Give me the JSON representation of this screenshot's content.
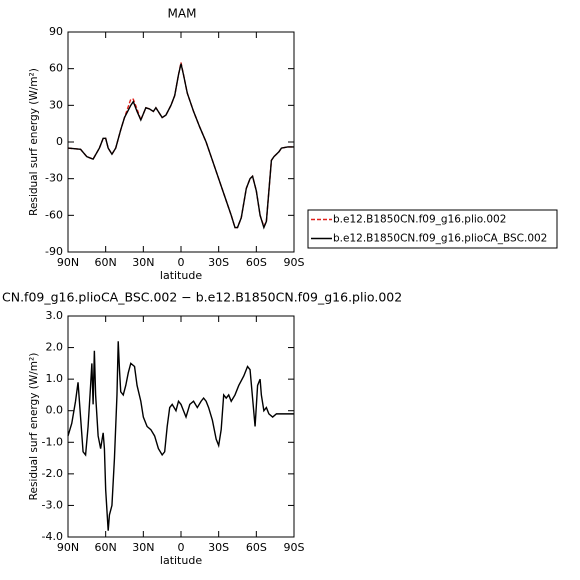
{
  "chart_data": [
    {
      "type": "line",
      "title": "MAM",
      "xlabel": "latitude",
      "ylabel": "Residual surf energy (W/m²)",
      "x": [
        90,
        80,
        75,
        70,
        65,
        62,
        60,
        58,
        55,
        52,
        48,
        45,
        40,
        38,
        35,
        32,
        28,
        25,
        22,
        20,
        15,
        12,
        8,
        5,
        2,
        0,
        -2,
        -5,
        -10,
        -15,
        -20,
        -25,
        -30,
        -35,
        -40,
        -43,
        -45,
        -48,
        -50,
        -52,
        -55,
        -57,
        -60,
        -63,
        -66,
        -68,
        -70,
        -72,
        -74,
        -76,
        -78,
        -80,
        -85,
        -90
      ],
      "series": [
        {
          "name": "b.e12.B1850CN.f09_g16.plio.002",
          "color": "#e0201b",
          "style": "dashed",
          "values": [
            -5,
            -6,
            -12,
            -14,
            -5,
            3,
            3,
            -5,
            -10,
            -5,
            10,
            20,
            35,
            35,
            27,
            18,
            28,
            27,
            25,
            28,
            20,
            22,
            30,
            38,
            55,
            65,
            55,
            40,
            25,
            12,
            0,
            -15,
            -30,
            -45,
            -60,
            -70,
            -70,
            -62,
            -50,
            -38,
            -30,
            -28,
            -40,
            -60,
            -69,
            -65,
            -40,
            -15,
            -12,
            -10,
            -8,
            -5,
            -4,
            -4
          ]
        },
        {
          "name": "b.e12.B1850CN.f09_g16.plioCA_BSC.002",
          "color": "#000000",
          "style": "solid",
          "values": [
            -5,
            -6,
            -12,
            -14,
            -5,
            3,
            3,
            -5,
            -10,
            -5,
            10,
            20,
            30,
            33,
            25,
            18,
            28,
            27,
            25,
            28,
            20,
            22,
            30,
            38,
            55,
            64,
            55,
            40,
            25,
            12,
            0,
            -15,
            -30,
            -45,
            -60,
            -70,
            -70,
            -62,
            -50,
            -38,
            -30,
            -28,
            -40,
            -60,
            -70,
            -65,
            -40,
            -15,
            -12,
            -10,
            -8,
            -5,
            -4,
            -4
          ]
        }
      ],
      "xlim": [
        90,
        -90
      ],
      "xticks": [
        {
          "value": 90,
          "label": "90N"
        },
        {
          "value": 60,
          "label": "60N"
        },
        {
          "value": 30,
          "label": "30N"
        },
        0,
        {
          "value": -30,
          "label": "30S"
        },
        {
          "value": -60,
          "label": "60S"
        },
        {
          "value": -90,
          "label": "90S"
        }
      ],
      "ylim": [
        -90,
        90
      ],
      "yticks": [
        -90,
        -60,
        -30,
        0,
        30,
        60,
        90
      ],
      "legend": "right"
    },
    {
      "type": "line",
      "title": "CN.f09_g16.plioCA_BSC.002 − b.e12.B1850CN.f09_g16.plio.002",
      "xlabel": "latitude",
      "ylabel": "Residual surf energy (W/m²)",
      "x": [
        90,
        87,
        84,
        82,
        80,
        78,
        76,
        74,
        72,
        71,
        70,
        69,
        68,
        66,
        64,
        62,
        61,
        60,
        58,
        57,
        55,
        53,
        51,
        50,
        49,
        48,
        46,
        44,
        42,
        40,
        37,
        35,
        32,
        30,
        27,
        24,
        21,
        18,
        15,
        13,
        11,
        9,
        7,
        4,
        2,
        0,
        -2,
        -4,
        -7,
        -10,
        -13,
        -16,
        -18,
        -20,
        -22,
        -25,
        -28,
        -30,
        -32,
        -34,
        -36,
        -38,
        -40,
        -43,
        -46,
        -50,
        -53,
        -55,
        -57,
        -59,
        -61,
        -63,
        -64,
        -66,
        -68,
        -70,
        -73,
        -76,
        -80,
        -85,
        -90
      ],
      "series": [
        {
          "color": "#000000",
          "style": "solid",
          "values": [
            -0.8,
            -0.4,
            0.3,
            0.9,
            -0.2,
            -1.3,
            -1.4,
            -0.5,
            0.8,
            1.5,
            0.2,
            1.9,
            0.5,
            -0.8,
            -1.2,
            -0.7,
            -1.2,
            -2.5,
            -3.8,
            -3.3,
            -3.0,
            -1.5,
            0.5,
            2.2,
            1.3,
            0.6,
            0.5,
            0.8,
            1.2,
            1.5,
            1.4,
            0.8,
            0.3,
            -0.2,
            -0.5,
            -0.6,
            -0.8,
            -1.2,
            -1.4,
            -1.3,
            -0.5,
            0.1,
            0.2,
            0.0,
            0.3,
            0.2,
            0.0,
            -0.2,
            0.2,
            0.3,
            0.1,
            0.3,
            0.4,
            0.3,
            0.1,
            -0.3,
            -0.9,
            -1.1,
            -0.6,
            0.5,
            0.4,
            0.5,
            0.3,
            0.5,
            0.8,
            1.1,
            1.4,
            1.3,
            0.4,
            -0.5,
            0.8,
            1.0,
            0.5,
            0.0,
            0.1,
            -0.1,
            -0.2,
            -0.1,
            -0.1,
            -0.1,
            -0.1
          ]
        }
      ],
      "xlim": [
        90,
        -90
      ],
      "xticks": [
        {
          "value": 90,
          "label": "90N"
        },
        {
          "value": 60,
          "label": "60N"
        },
        {
          "value": 30,
          "label": "30N"
        },
        0,
        {
          "value": -30,
          "label": "30S"
        },
        {
          "value": -60,
          "label": "60S"
        },
        {
          "value": -90,
          "label": "90S"
        }
      ],
      "ylim": [
        -4,
        3
      ],
      "yticks": [
        {
          "value": -4,
          "label": "-4.0"
        },
        {
          "value": -3,
          "label": "-3.0"
        },
        {
          "value": -2,
          "label": "-2.0"
        },
        {
          "value": -1,
          "label": "-1.0"
        },
        {
          "value": 0,
          "label": "0.0"
        },
        {
          "value": 1,
          "label": "1.0"
        },
        {
          "value": 2,
          "label": "2.0"
        },
        {
          "value": 3,
          "label": "3.0"
        }
      ]
    }
  ]
}
